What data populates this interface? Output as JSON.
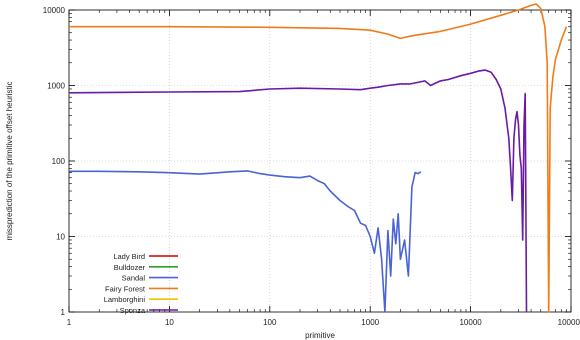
{
  "chart_data": {
    "type": "line",
    "xlabel": "primitive",
    "ylabel": "missprediction of the primitive offset heuristic",
    "xscale": "log",
    "yscale": "log",
    "xlim": [
      1,
      100000
    ],
    "ylim": [
      1,
      10000
    ],
    "x_ticks": [
      {
        "value": 1,
        "label": "1"
      },
      {
        "value": 10,
        "label": "10"
      },
      {
        "value": 100,
        "label": "100"
      },
      {
        "value": 1000,
        "label": "1000"
      },
      {
        "value": 10000,
        "label": "10000"
      },
      {
        "value": 100000,
        "label": "100000"
      }
    ],
    "y_ticks": [
      {
        "value": 1,
        "label": "1"
      },
      {
        "value": 10,
        "label": "10"
      },
      {
        "value": 100,
        "label": "100"
      },
      {
        "value": 1000,
        "label": "1000"
      },
      {
        "value": 10000,
        "label": "10000"
      }
    ],
    "grid": true,
    "legend_position": "bottom-left",
    "series": [
      {
        "name": "Lady Bird",
        "color": "#cc0000",
        "x": [],
        "y": []
      },
      {
        "name": "Bulldozer",
        "color": "#2ca02c",
        "x": [],
        "y": []
      },
      {
        "name": "Sandal",
        "color": "#4a63d6",
        "x": [
          1,
          2,
          5,
          10,
          20,
          40,
          60,
          80,
          100,
          140,
          200,
          250,
          300,
          350,
          400,
          500,
          600,
          700,
          800,
          900,
          1000,
          1100,
          1200,
          1300,
          1400,
          1500,
          1600,
          1700,
          1800,
          1900,
          2000,
          2200,
          2400,
          2600,
          2800,
          3000,
          3200
        ],
        "y": [
          73,
          73,
          72,
          70,
          67,
          72,
          74,
          68,
          65,
          62,
          60,
          63,
          55,
          50,
          40,
          30,
          25,
          22,
          15,
          14,
          10,
          6,
          13,
          5,
          1,
          12,
          3,
          17,
          8,
          20,
          5,
          9,
          3,
          45,
          70,
          68,
          72
        ]
      },
      {
        "name": "Fairy Forest",
        "color": "#f07b1a",
        "x": [
          1,
          10,
          100,
          500,
          1000,
          1500,
          2000,
          2500,
          3000,
          5000,
          10000,
          20000,
          30000,
          40000,
          45000,
          50000,
          55000,
          58000,
          60000,
          62000,
          64000,
          66000,
          70000,
          80000,
          90000
        ],
        "y": [
          6000,
          6000,
          5900,
          5700,
          5400,
          4800,
          4200,
          4500,
          4700,
          5200,
          6500,
          8500,
          10000,
          11500,
          12000,
          10500,
          6000,
          2000,
          1,
          500,
          800,
          1300,
          2200,
          4000,
          6000
        ]
      },
      {
        "name": "Lamborghini",
        "color": "#f2c400",
        "x": [],
        "y": []
      },
      {
        "name": "Sponza",
        "color": "#6a1aa6",
        "x": [
          1,
          10,
          50,
          100,
          200,
          500,
          800,
          1000,
          1200,
          1500,
          2000,
          2500,
          3000,
          3500,
          4000,
          5000,
          6000,
          8000,
          10000,
          12000,
          14000,
          16000,
          18000,
          20000,
          22000,
          24000,
          25000,
          26000,
          27000,
          28000,
          29000,
          30000,
          31000,
          32000,
          33000,
          34000,
          35000,
          36000
        ],
        "y": [
          800,
          820,
          830,
          900,
          920,
          900,
          880,
          920,
          950,
          1000,
          1050,
          1050,
          1100,
          1150,
          1000,
          1150,
          1200,
          1350,
          1450,
          1550,
          1600,
          1500,
          1200,
          900,
          500,
          200,
          80,
          30,
          200,
          350,
          450,
          300,
          120,
          80,
          9,
          300,
          780,
          1
        ]
      }
    ]
  }
}
